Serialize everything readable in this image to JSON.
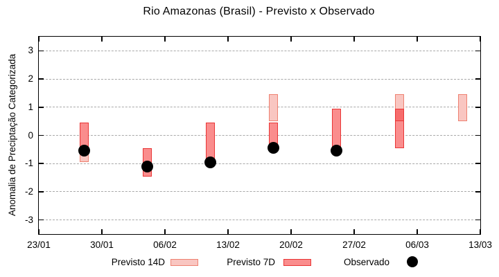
{
  "title": "Rio Amazonas (Brasil) - Previsto x Observado",
  "axes": {
    "ylabel": "Anomalia de Preciptação Categorizada",
    "yticks": [
      3,
      2,
      1,
      0,
      -1,
      -2,
      -3
    ],
    "xticks": [
      "23/01",
      "30/01",
      "06/02",
      "13/02",
      "20/02",
      "27/02",
      "06/03",
      "13/03"
    ]
  },
  "legend": {
    "previsto14_label": "Previsto 14D",
    "previsto7_label": "Previsto 7D",
    "observado_label": "Observado"
  },
  "colors": {
    "p14_fill": "#f9c6c1",
    "p14_border": "#ee8171",
    "p7_fill": "#fa8d8d",
    "p7_border": "#e93535",
    "overlap_fill": "#f66c6c",
    "observed": "#000000",
    "grid": "#a8a8a8",
    "axis": "#000000"
  },
  "chart_data": {
    "type": "bar",
    "subtype": "range-bars-with-observed-scatter",
    "title": "Rio Amazonas (Brasil) - Previsto x Observado",
    "xlabel": "",
    "ylabel": "Anomalia de Preciptação Categorizada",
    "ylim": [
      -3.5,
      3.5
    ],
    "yticks": [
      3,
      2,
      1,
      0,
      -1,
      -2,
      -3
    ],
    "grid": "horizontal-dashed",
    "legend_position": "below-plot",
    "x_axis": {
      "tick_labels": [
        "23/01",
        "30/01",
        "06/02",
        "13/02",
        "20/02",
        "27/02",
        "06/03",
        "13/03"
      ],
      "tick_days": [
        0,
        7,
        14,
        21,
        28,
        35,
        42,
        49
      ],
      "span_days": 49,
      "bar_width_days": 1
    },
    "series": [
      {
        "name": "Previsto 14D",
        "type": "range_bar",
        "points": [
          {
            "day": 5,
            "low": -0.95,
            "high": -0.45
          },
          {
            "day": 26,
            "low": 0.5,
            "high": 1.45
          },
          {
            "day": 40,
            "low": 0.5,
            "high": 1.45
          },
          {
            "day": 47,
            "low": 0.5,
            "high": 1.45
          }
        ]
      },
      {
        "name": "Previsto 7D",
        "type": "range_bar",
        "points": [
          {
            "day": 5,
            "low": -0.45,
            "high": 0.45
          },
          {
            "day": 12,
            "low": -1.45,
            "high": -0.45
          },
          {
            "day": 19,
            "low": -0.95,
            "high": 0.45
          },
          {
            "day": 26,
            "low": -0.45,
            "high": 0.45
          },
          {
            "day": 33,
            "low": -0.45,
            "high": 0.95
          },
          {
            "day": 40,
            "low": -0.45,
            "high": 0.95
          }
        ]
      },
      {
        "name": "Observado",
        "type": "scatter",
        "points": [
          {
            "day": 5,
            "value": -0.55
          },
          {
            "day": 12,
            "value": -1.1
          },
          {
            "day": 19,
            "value": -0.95
          },
          {
            "day": 26,
            "value": -0.45
          },
          {
            "day": 33,
            "value": -0.55
          }
        ]
      }
    ]
  }
}
